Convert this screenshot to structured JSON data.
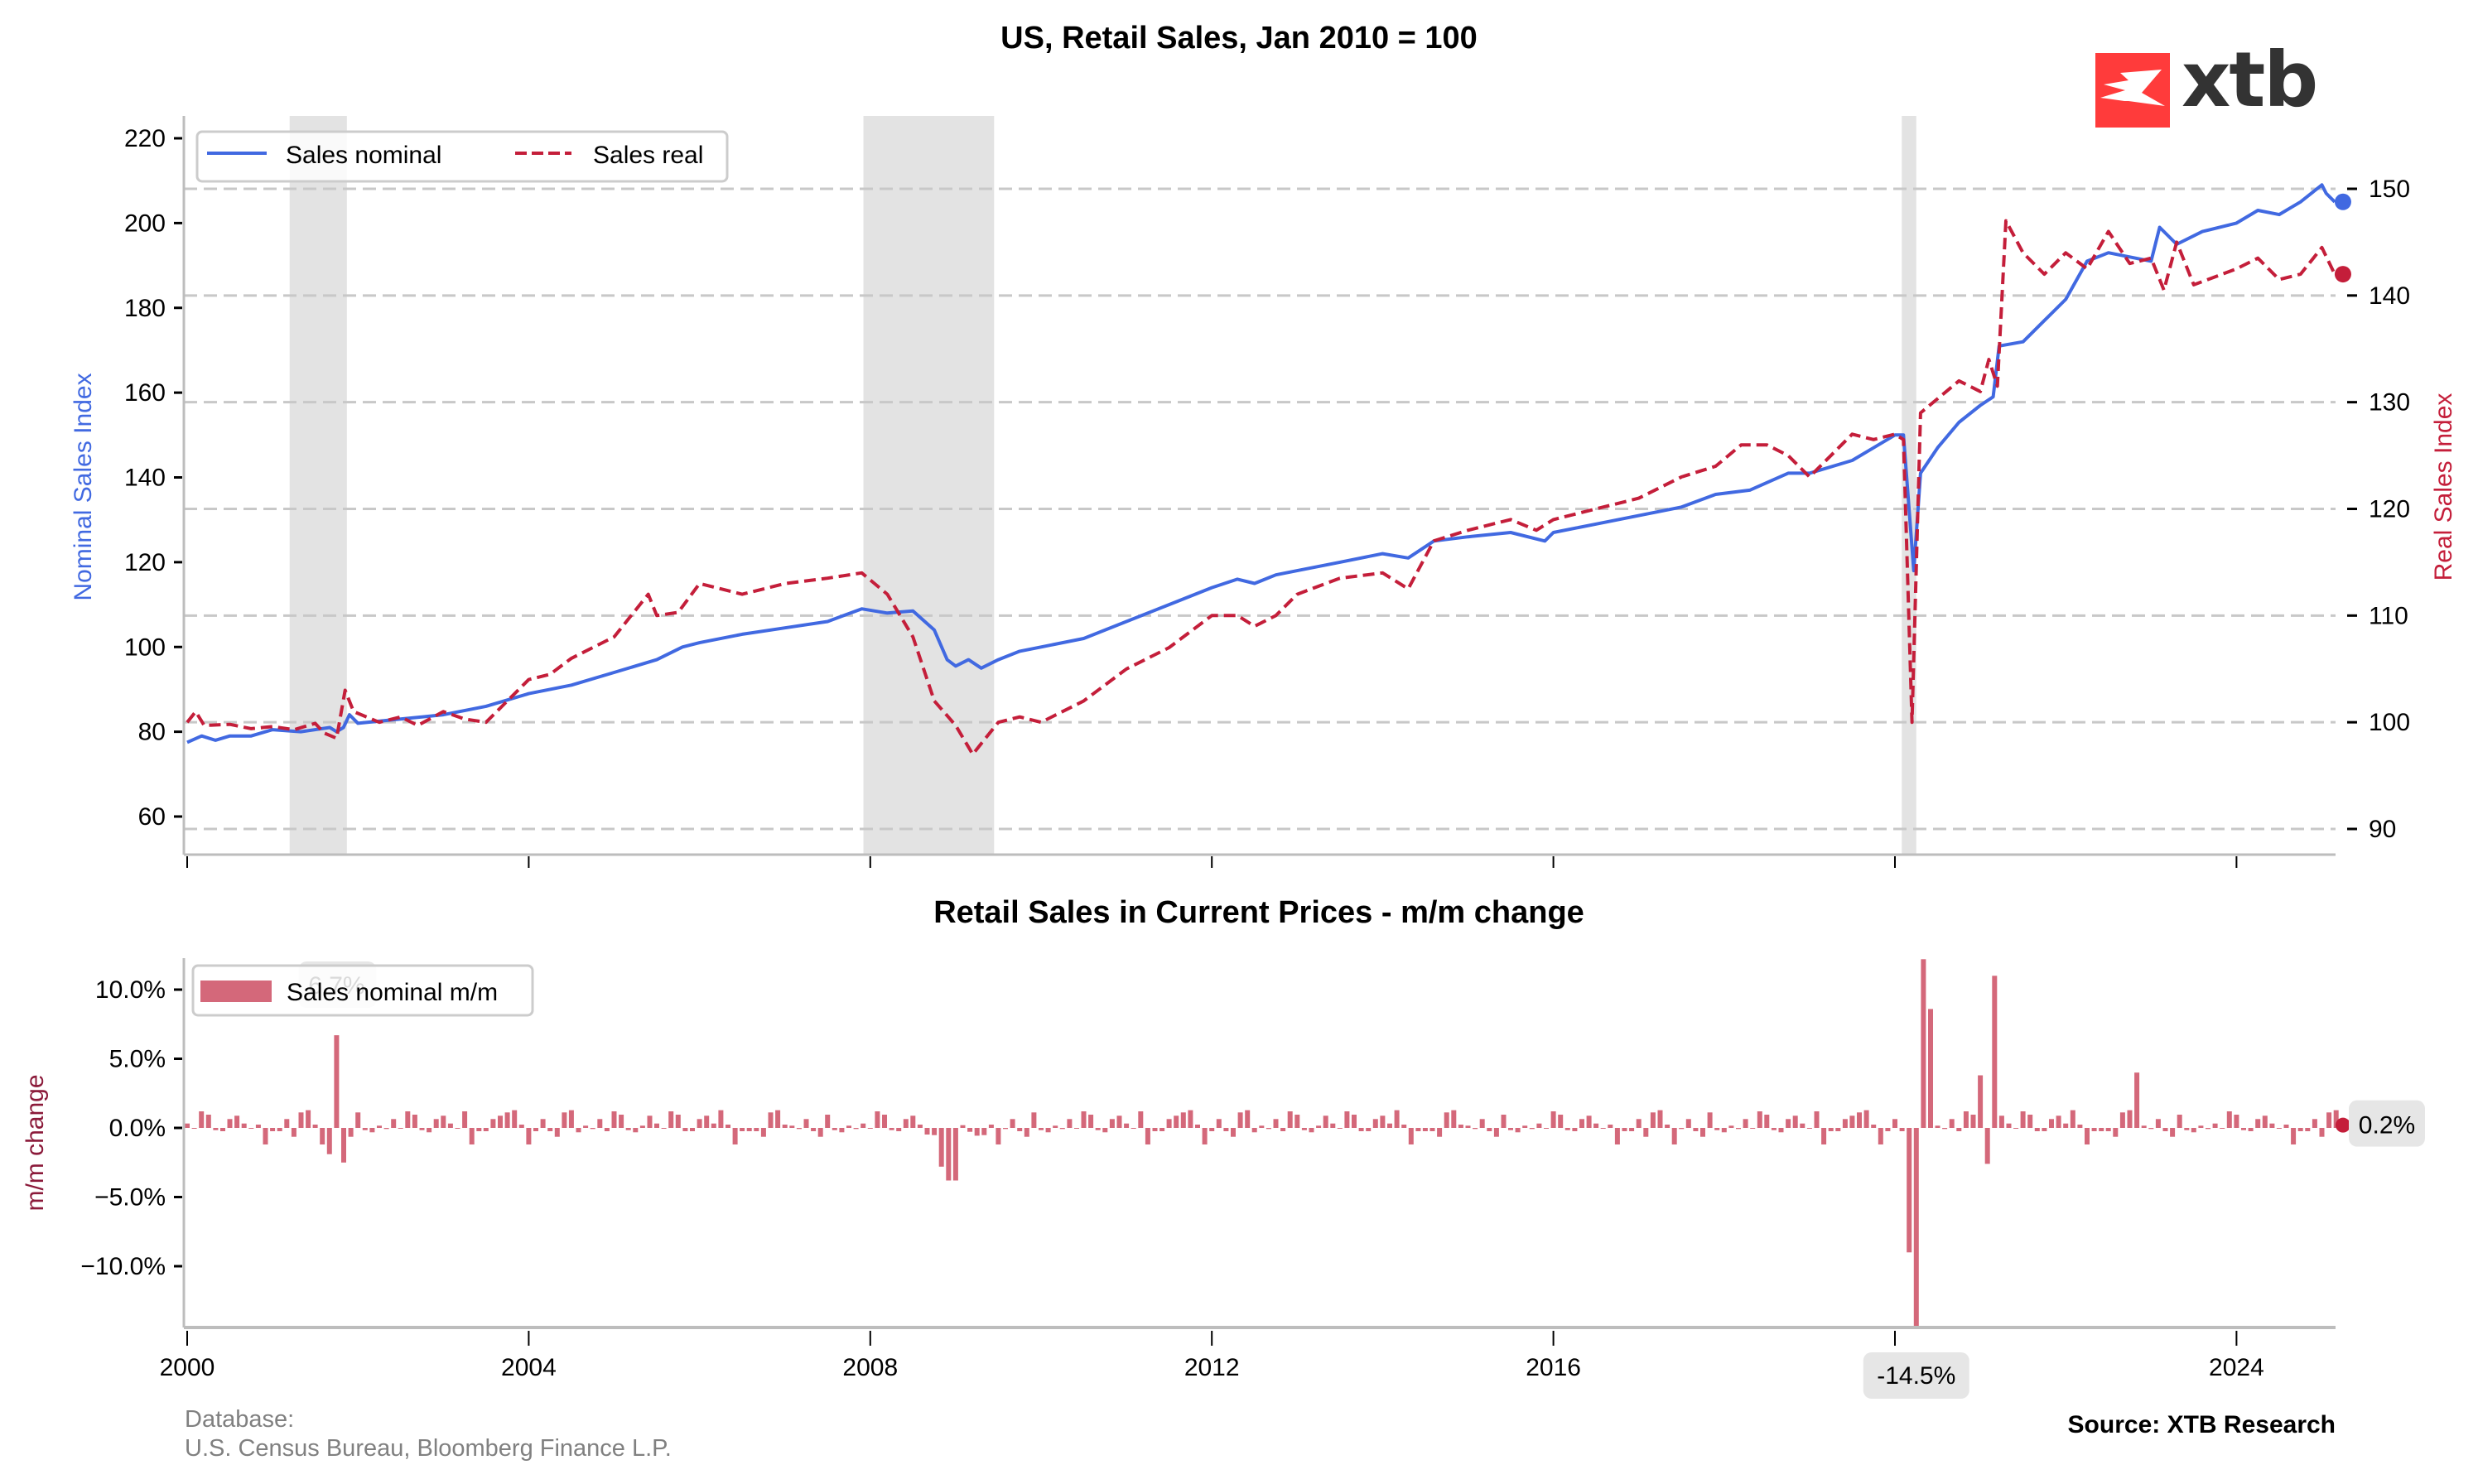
{
  "header": {
    "title": "US, Retail Sales, Jan 2010 = 100",
    "logo_text": "xtb",
    "logo_color": "#ff3b3b"
  },
  "footer": {
    "database_label": "Database:",
    "database_sources": "U.S. Census Bureau, Bloomberg Finance L.P.",
    "source": "Source: XTB Research"
  },
  "colors": {
    "nominal": "#4169e1",
    "real": "#c41e3a",
    "bars": "#d4687a",
    "recession": "#e3e3e3",
    "grid": "#c8c8c8",
    "spine": "#bdbdbd",
    "mm_label": "#8b1a3a"
  },
  "chart_data": [
    {
      "type": "line",
      "title": "US, Retail Sales, Jan 2010 = 100",
      "xlabel": "",
      "ylabel": "Nominal Sales Index",
      "ylabel_right": "Real Sales Index",
      "xlim": [
        2000.0,
        2025.2
      ],
      "ylim": [
        52,
        225
      ],
      "ylim_right": [
        88,
        152
      ],
      "x_ticks": [
        "2000",
        "2004",
        "2008",
        "2012",
        "2016",
        "2020",
        "2024"
      ],
      "x_tick_values": [
        2000,
        2004,
        2008,
        2012,
        2016,
        2020,
        2024
      ],
      "y_ticks": [
        60,
        80,
        100,
        120,
        140,
        160,
        180,
        200,
        220
      ],
      "y_ticks_right": [
        90,
        100,
        110,
        120,
        130,
        140,
        150
      ],
      "grid": "horizontal dashed (right axis)",
      "legend": "top-left",
      "recessions": [
        [
          2001.2,
          2001.87
        ],
        [
          2007.92,
          2009.45
        ],
        [
          2020.08,
          2020.25
        ]
      ],
      "series": [
        {
          "name": "Sales nominal",
          "axis": "left",
          "style": "solid",
          "points": [
            [
              2000.0,
              77.5
            ],
            [
              2000.17,
              79
            ],
            [
              2000.33,
              78
            ],
            [
              2000.5,
              79
            ],
            [
              2000.75,
              79
            ],
            [
              2001.0,
              80.5
            ],
            [
              2001.33,
              80
            ],
            [
              2001.67,
              81
            ],
            [
              2001.75,
              80
            ],
            [
              2001.83,
              81
            ],
            [
              2001.9,
              84
            ],
            [
              2002.0,
              82
            ],
            [
              2002.5,
              83
            ],
            [
              2003.0,
              84
            ],
            [
              2003.5,
              86
            ],
            [
              2004.0,
              89
            ],
            [
              2004.5,
              91
            ],
            [
              2005.0,
              94
            ],
            [
              2005.5,
              97
            ],
            [
              2005.8,
              100
            ],
            [
              2006.0,
              101
            ],
            [
              2006.5,
              103
            ],
            [
              2007.0,
              104.5
            ],
            [
              2007.5,
              106
            ],
            [
              2007.9,
              109
            ],
            [
              2008.2,
              108
            ],
            [
              2008.5,
              108.5
            ],
            [
              2008.75,
              104
            ],
            [
              2008.9,
              97
            ],
            [
              2009.0,
              95.5
            ],
            [
              2009.15,
              97
            ],
            [
              2009.3,
              95
            ],
            [
              2009.5,
              97
            ],
            [
              2009.75,
              99
            ],
            [
              2010.0,
              100
            ],
            [
              2010.5,
              102
            ],
            [
              2011.0,
              106
            ],
            [
              2011.5,
              110
            ],
            [
              2012.0,
              114
            ],
            [
              2012.3,
              116
            ],
            [
              2012.5,
              115
            ],
            [
              2012.75,
              117
            ],
            [
              2013.0,
              118
            ],
            [
              2013.5,
              120
            ],
            [
              2014.0,
              122
            ],
            [
              2014.3,
              121
            ],
            [
              2014.6,
              125
            ],
            [
              2015.0,
              126
            ],
            [
              2015.5,
              127
            ],
            [
              2015.9,
              125
            ],
            [
              2016.0,
              127
            ],
            [
              2016.5,
              129
            ],
            [
              2017.0,
              131
            ],
            [
              2017.5,
              133
            ],
            [
              2017.9,
              136
            ],
            [
              2018.3,
              137
            ],
            [
              2018.75,
              141
            ],
            [
              2019.0,
              141
            ],
            [
              2019.5,
              144
            ],
            [
              2019.75,
              147
            ],
            [
              2020.0,
              150
            ],
            [
              2020.1,
              150
            ],
            [
              2020.22,
              118
            ],
            [
              2020.3,
              141
            ],
            [
              2020.5,
              147
            ],
            [
              2020.75,
              153
            ],
            [
              2021.0,
              157
            ],
            [
              2021.15,
              159
            ],
            [
              2021.22,
              171
            ],
            [
              2021.5,
              172
            ],
            [
              2021.75,
              177
            ],
            [
              2022.0,
              182
            ],
            [
              2022.25,
              191
            ],
            [
              2022.5,
              193
            ],
            [
              2022.75,
              192
            ],
            [
              2023.0,
              191
            ],
            [
              2023.1,
              199
            ],
            [
              2023.3,
              195
            ],
            [
              2023.6,
              198
            ],
            [
              2024.0,
              200
            ],
            [
              2024.25,
              203
            ],
            [
              2024.5,
              202
            ],
            [
              2024.75,
              205
            ],
            [
              2025.0,
              209
            ],
            [
              2025.05,
              207
            ],
            [
              2025.15,
              205
            ]
          ]
        },
        {
          "name": "Sales real",
          "axis": "right",
          "style": "dashed",
          "points": [
            [
              2000.0,
              100
            ],
            [
              2000.1,
              101
            ],
            [
              2000.2,
              99.7
            ],
            [
              2000.5,
              99.8
            ],
            [
              2000.75,
              99.4
            ],
            [
              2001.0,
              99.6
            ],
            [
              2001.25,
              99.3
            ],
            [
              2001.5,
              99.9
            ],
            [
              2001.6,
              99
            ],
            [
              2001.75,
              98.5
            ],
            [
              2001.85,
              103
            ],
            [
              2001.95,
              101
            ],
            [
              2002.25,
              100
            ],
            [
              2002.5,
              100.5
            ],
            [
              2002.7,
              99.7
            ],
            [
              2003.0,
              101
            ],
            [
              2003.25,
              100.3
            ],
            [
              2003.5,
              100
            ],
            [
              2003.75,
              102
            ],
            [
              2004.0,
              104
            ],
            [
              2004.25,
              104.5
            ],
            [
              2004.5,
              106
            ],
            [
              2004.75,
              107
            ],
            [
              2005.0,
              108
            ],
            [
              2005.4,
              112
            ],
            [
              2005.5,
              110
            ],
            [
              2005.75,
              110.3
            ],
            [
              2006.0,
              113
            ],
            [
              2006.25,
              112.5
            ],
            [
              2006.5,
              112
            ],
            [
              2007.0,
              113
            ],
            [
              2007.5,
              113.5
            ],
            [
              2007.9,
              114
            ],
            [
              2008.2,
              112
            ],
            [
              2008.5,
              108
            ],
            [
              2008.75,
              102
            ],
            [
              2009.0,
              99.7
            ],
            [
              2009.2,
              97
            ],
            [
              2009.5,
              100
            ],
            [
              2009.75,
              100.5
            ],
            [
              2010.0,
              100
            ],
            [
              2010.5,
              102
            ],
            [
              2011.0,
              105
            ],
            [
              2011.5,
              107
            ],
            [
              2012.0,
              110
            ],
            [
              2012.3,
              110
            ],
            [
              2012.5,
              109
            ],
            [
              2012.75,
              110
            ],
            [
              2013.0,
              112
            ],
            [
              2013.5,
              113.5
            ],
            [
              2014.0,
              114
            ],
            [
              2014.3,
              112.5
            ],
            [
              2014.6,
              117
            ],
            [
              2015.0,
              118
            ],
            [
              2015.5,
              119
            ],
            [
              2015.8,
              118
            ],
            [
              2016.0,
              119
            ],
            [
              2016.5,
              120
            ],
            [
              2017.0,
              121
            ],
            [
              2017.5,
              123
            ],
            [
              2017.9,
              124
            ],
            [
              2018.2,
              126
            ],
            [
              2018.5,
              126
            ],
            [
              2018.75,
              125
            ],
            [
              2019.0,
              123
            ],
            [
              2019.5,
              127
            ],
            [
              2019.75,
              126.5
            ],
            [
              2020.0,
              127
            ],
            [
              2020.1,
              126.5
            ],
            [
              2020.2,
              100
            ],
            [
              2020.3,
              129
            ],
            [
              2020.6,
              131
            ],
            [
              2020.75,
              132
            ],
            [
              2021.0,
              131
            ],
            [
              2021.1,
              134
            ],
            [
              2021.2,
              131.5
            ],
            [
              2021.3,
              147
            ],
            [
              2021.5,
              144
            ],
            [
              2021.75,
              142
            ],
            [
              2022.0,
              144
            ],
            [
              2022.25,
              142.5
            ],
            [
              2022.5,
              146
            ],
            [
              2022.75,
              143
            ],
            [
              2023.0,
              143.5
            ],
            [
              2023.15,
              140.5
            ],
            [
              2023.3,
              145
            ],
            [
              2023.5,
              141
            ],
            [
              2024.0,
              142.5
            ],
            [
              2024.25,
              143.5
            ],
            [
              2024.5,
              141.5
            ],
            [
              2024.75,
              142
            ],
            [
              2025.0,
              144.5
            ],
            [
              2025.15,
              142
            ]
          ]
        }
      ],
      "end_markers": [
        {
          "series": "Sales nominal",
          "x": 2025.15,
          "value": 205
        },
        {
          "series": "Sales real",
          "x": 2025.15,
          "value": 142
        }
      ]
    },
    {
      "type": "bar",
      "title": "Retail Sales in Current Prices - m/m change",
      "xlabel": "",
      "ylabel": "m/m change",
      "xlim": [
        2000.0,
        2025.2
      ],
      "ylim": [
        -14.5,
        12.2
      ],
      "y_ticks": [
        "-10.0%",
        "-5.0%",
        "0.0%",
        "5.0%",
        "10.0%"
      ],
      "y_tick_values": [
        -10,
        -5,
        0,
        5,
        10
      ],
      "x_ticks": [
        "2000",
        "2004",
        "2008",
        "2012",
        "2016",
        "2020",
        "2024"
      ],
      "legend": "top-left",
      "legend_label": "Sales nominal m/m",
      "annotations": [
        {
          "text": "6.7%",
          "x": 2001.75,
          "value": 6.7,
          "note": "mostly hidden behind legend"
        },
        {
          "text": "-14.5%",
          "x": 2020.25,
          "value": -14.5
        },
        {
          "text": "0.2%",
          "x": 2025.15,
          "value": 0.2
        }
      ],
      "spikes": [
        [
          2001.75,
          6.7
        ],
        [
          2001.67,
          -1.9
        ],
        [
          2001.83,
          -2.5
        ],
        [
          2008.83,
          -2.8
        ],
        [
          2008.92,
          -3.8
        ],
        [
          2009.0,
          -3.8
        ],
        [
          2020.17,
          -9.0
        ],
        [
          2020.25,
          -14.5
        ],
        [
          2020.33,
          12.2
        ],
        [
          2020.42,
          8.6
        ],
        [
          2021.0,
          3.8
        ],
        [
          2021.17,
          11.0
        ],
        [
          2021.08,
          -2.6
        ],
        [
          2022.83,
          4.0
        ]
      ],
      "base_pattern": [
        0.4,
        1.4,
        1.2,
        -1.5,
        0.2,
        0.8,
        -0.3,
        0.0,
        1.6,
        -0.2,
        -0.3,
        -0.1,
        1.1,
        -0.8,
        1.5,
        0.3,
        -0.4,
        -0.3,
        0.8
      ]
    }
  ]
}
